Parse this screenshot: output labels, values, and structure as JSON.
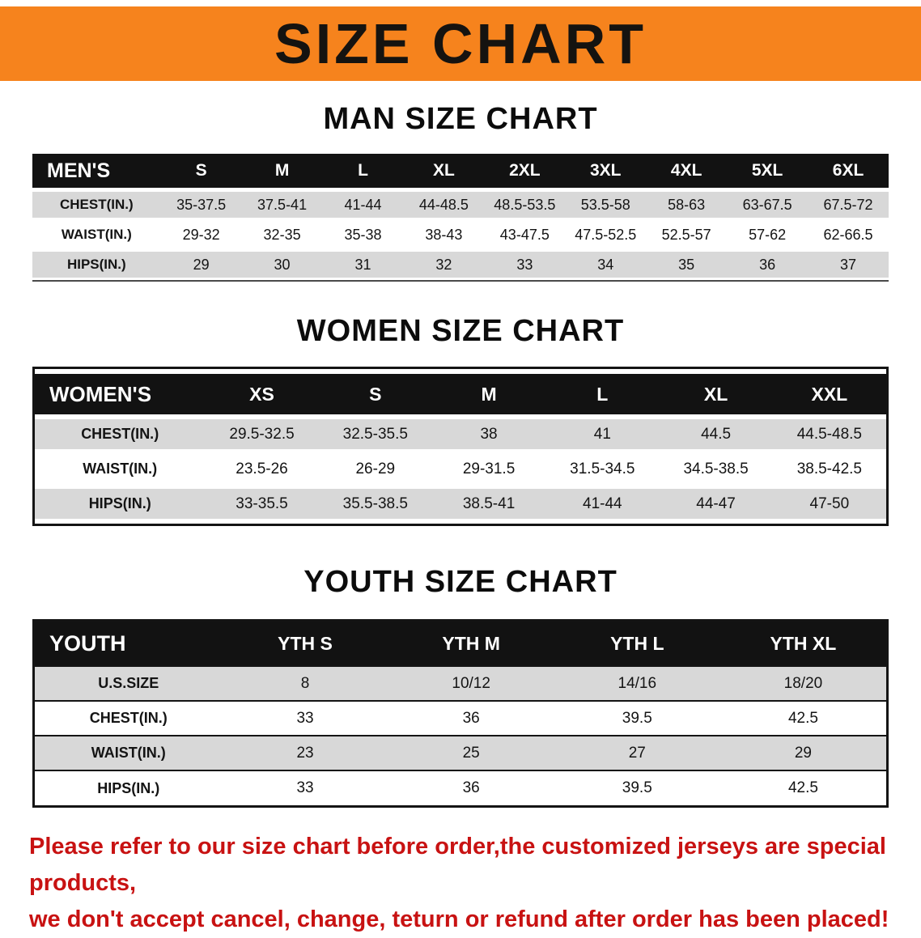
{
  "banner": {
    "title": "SIZE CHART"
  },
  "colors": {
    "banner_bg": "#f6831d",
    "table_header_bg": "#121212",
    "row_gray": "#d8d8d8",
    "footer_red": "#c81212"
  },
  "sections": [
    {
      "id": "men",
      "heading": "MAN SIZE CHART",
      "table": {
        "header": [
          "MEN'S",
          "S",
          "M",
          "L",
          "XL",
          "2XL",
          "3XL",
          "4XL",
          "5XL",
          "6XL"
        ],
        "rows": [
          [
            "CHEST(IN.)",
            "35-37.5",
            "37.5-41",
            "41-44",
            "44-48.5",
            "48.5-53.5",
            "53.5-58",
            "58-63",
            "63-67.5",
            "67.5-72"
          ],
          [
            "WAIST(IN.)",
            "29-32",
            "32-35",
            "35-38",
            "38-43",
            "43-47.5",
            "47.5-52.5",
            "52.5-57",
            "57-62",
            "62-66.5"
          ],
          [
            "HIPS(IN.)",
            "29",
            "30",
            "31",
            "32",
            "33",
            "34",
            "35",
            "36",
            "37"
          ]
        ]
      }
    },
    {
      "id": "women",
      "heading": "WOMEN SIZE CHART",
      "table": {
        "header": [
          "WOMEN'S",
          "XS",
          "S",
          "M",
          "L",
          "XL",
          "XXL"
        ],
        "rows": [
          [
            "CHEST(IN.)",
            "29.5-32.5",
            "32.5-35.5",
            "38",
            "41",
            "44.5",
            "44.5-48.5"
          ],
          [
            "WAIST(IN.)",
            "23.5-26",
            "26-29",
            "29-31.5",
            "31.5-34.5",
            "34.5-38.5",
            "38.5-42.5"
          ],
          [
            "HIPS(IN.)",
            "33-35.5",
            "35.5-38.5",
            "38.5-41",
            "41-44",
            "44-47",
            "47-50"
          ]
        ]
      }
    },
    {
      "id": "youth",
      "heading": "YOUTH SIZE CHART",
      "table": {
        "header": [
          "YOUTH",
          "YTH S",
          "YTH M",
          "YTH L",
          "YTH XL"
        ],
        "rows": [
          [
            "U.S.SIZE",
            "8",
            "10/12",
            "14/16",
            "18/20"
          ],
          [
            "CHEST(IN.)",
            "33",
            "36",
            "39.5",
            "42.5"
          ],
          [
            "WAIST(IN.)",
            "23",
            "25",
            "27",
            "29"
          ],
          [
            "HIPS(IN.)",
            "33",
            "36",
            "39.5",
            "42.5"
          ]
        ]
      }
    }
  ],
  "footer": {
    "lines": [
      "Please refer to our size chart before order,the customized jerseys are special products,",
      "we don't accept cancel, change, teturn or refund after order has been placed!"
    ]
  }
}
